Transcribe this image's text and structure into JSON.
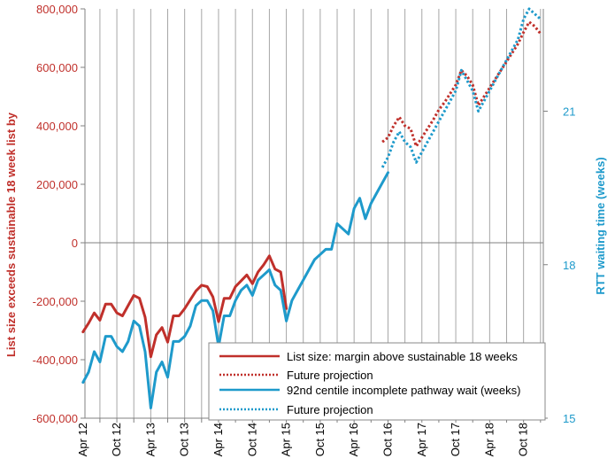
{
  "chart_data": {
    "type": "line",
    "title": "",
    "xlabel": "",
    "ylabel_left": "List size exceeds sustainable 18 week list by",
    "ylabel_right": "RTT waiting time (weeks)",
    "ylim_left": [
      -600000,
      800000
    ],
    "ylim_right": [
      15,
      23
    ],
    "left_ticks": [
      {
        "value": 800000,
        "label": "800,000"
      },
      {
        "value": 600000,
        "label": "600,000"
      },
      {
        "value": 400000,
        "label": "400,000"
      },
      {
        "value": 200000,
        "label": "200,000"
      },
      {
        "value": 0,
        "label": "0"
      },
      {
        "value": -200000,
        "label": "-200,000"
      },
      {
        "value": -400000,
        "label": "-400,000"
      },
      {
        "value": -600000,
        "label": "-600,000"
      }
    ],
    "right_ticks": [
      {
        "value": 21,
        "label": "21"
      },
      {
        "value": 18,
        "label": "18"
      },
      {
        "value": 15,
        "label": "15"
      }
    ],
    "x_start": "Apr 12",
    "x_period_count": 81,
    "x_tick_labels": [
      {
        "month_index": 0,
        "label": "Apr 12"
      },
      {
        "month_index": 6,
        "label": "Oct 12"
      },
      {
        "month_index": 12,
        "label": "Apr 13"
      },
      {
        "month_index": 18,
        "label": "Oct 13"
      },
      {
        "month_index": 24,
        "label": "Apr 14"
      },
      {
        "month_index": 30,
        "label": "Oct 14"
      },
      {
        "month_index": 36,
        "label": "Apr 15"
      },
      {
        "month_index": 42,
        "label": "Oct 15"
      },
      {
        "month_index": 48,
        "label": "Apr 16"
      },
      {
        "month_index": 54,
        "label": "Oct 16"
      },
      {
        "month_index": 60,
        "label": "Apr 17"
      },
      {
        "month_index": 66,
        "label": "Oct 17"
      },
      {
        "month_index": 72,
        "label": "Apr 18"
      },
      {
        "month_index": 78,
        "label": "Oct 18"
      }
    ],
    "grid": "vertical",
    "legend_position": "bottom-right",
    "series": [
      {
        "name": "List size: margin above sustainable 18 weeks",
        "axis": "left",
        "color": "#C0302B",
        "style": "solid",
        "points": [
          [
            0,
            -305000
          ],
          [
            1,
            -275000
          ],
          [
            2,
            -240000
          ],
          [
            3,
            -265000
          ],
          [
            4,
            -210000
          ],
          [
            5,
            -210000
          ],
          [
            6,
            -240000
          ],
          [
            7,
            -250000
          ],
          [
            8,
            -215000
          ],
          [
            9,
            -180000
          ],
          [
            10,
            -190000
          ],
          [
            11,
            -255000
          ],
          [
            12,
            -390000
          ],
          [
            13,
            -315000
          ],
          [
            14,
            -290000
          ],
          [
            15,
            -340000
          ],
          [
            16,
            -250000
          ],
          [
            17,
            -250000
          ],
          [
            18,
            -225000
          ],
          [
            19,
            -195000
          ],
          [
            20,
            -165000
          ],
          [
            21,
            -145000
          ],
          [
            22,
            -150000
          ],
          [
            23,
            -185000
          ],
          [
            24,
            -270000
          ],
          [
            25,
            -190000
          ],
          [
            26,
            -190000
          ],
          [
            27,
            -150000
          ],
          [
            28,
            -130000
          ],
          [
            29,
            -110000
          ],
          [
            30,
            -140000
          ],
          [
            31,
            -100000
          ],
          [
            32,
            -75000
          ],
          [
            33,
            -45000
          ],
          [
            34,
            -90000
          ],
          [
            35,
            -100000
          ],
          [
            36,
            -225000
          ]
        ]
      },
      {
        "name": "Future projection",
        "axis": "left",
        "color": "#C0302B",
        "style": "dotted",
        "points": [
          [
            53,
            345000
          ],
          [
            54,
            360000
          ],
          [
            55,
            400000
          ],
          [
            56,
            430000
          ],
          [
            57,
            400000
          ],
          [
            58,
            390000
          ],
          [
            59,
            330000
          ],
          [
            60,
            360000
          ],
          [
            61,
            390000
          ],
          [
            62,
            420000
          ],
          [
            63,
            455000
          ],
          [
            64,
            480000
          ],
          [
            65,
            510000
          ],
          [
            66,
            540000
          ],
          [
            67,
            590000
          ],
          [
            68,
            570000
          ],
          [
            69,
            540000
          ],
          [
            70,
            470000
          ],
          [
            71,
            500000
          ],
          [
            72,
            530000
          ],
          [
            73,
            560000
          ],
          [
            74,
            590000
          ],
          [
            75,
            620000
          ],
          [
            76,
            650000
          ],
          [
            77,
            680000
          ],
          [
            78,
            720000
          ],
          [
            79,
            755000
          ],
          [
            80,
            740000
          ],
          [
            81,
            715000
          ]
        ]
      },
      {
        "name": "92nd centile incomplete pathway wait (weeks)",
        "axis": "right",
        "color": "#1E9ACB",
        "style": "solid",
        "points": [
          [
            0,
            15.7
          ],
          [
            1,
            15.9
          ],
          [
            2,
            16.3
          ],
          [
            3,
            16.1
          ],
          [
            4,
            16.6
          ],
          [
            5,
            16.6
          ],
          [
            6,
            16.4
          ],
          [
            7,
            16.3
          ],
          [
            8,
            16.5
          ],
          [
            9,
            16.9
          ],
          [
            10,
            16.8
          ],
          [
            11,
            16.3
          ],
          [
            12,
            15.2
          ],
          [
            13,
            15.9
          ],
          [
            14,
            16.1
          ],
          [
            15,
            15.8
          ],
          [
            16,
            16.5
          ],
          [
            17,
            16.5
          ],
          [
            18,
            16.6
          ],
          [
            19,
            16.8
          ],
          [
            20,
            17.2
          ],
          [
            21,
            17.3
          ],
          [
            22,
            17.3
          ],
          [
            23,
            17.1
          ],
          [
            24,
            16.4
          ],
          [
            25,
            17.0
          ],
          [
            26,
            17.0
          ],
          [
            27,
            17.3
          ],
          [
            28,
            17.5
          ],
          [
            29,
            17.6
          ],
          [
            30,
            17.4
          ],
          [
            31,
            17.7
          ],
          [
            32,
            17.8
          ],
          [
            33,
            17.9
          ],
          [
            34,
            17.6
          ],
          [
            35,
            17.5
          ],
          [
            36,
            16.9
          ],
          [
            37,
            17.3
          ],
          [
            38,
            17.5
          ],
          [
            39,
            17.7
          ],
          [
            40,
            17.9
          ],
          [
            41,
            18.1
          ],
          [
            42,
            18.2
          ],
          [
            43,
            18.3
          ],
          [
            44,
            18.3
          ],
          [
            45,
            18.8
          ],
          [
            46,
            18.7
          ],
          [
            47,
            18.6
          ],
          [
            48,
            19.1
          ],
          [
            49,
            19.3
          ],
          [
            50,
            18.9
          ],
          [
            51,
            19.2
          ],
          [
            52,
            19.4
          ],
          [
            53,
            19.6
          ],
          [
            54,
            19.8
          ]
        ]
      },
      {
        "name": "Future projection",
        "axis": "right",
        "color": "#1E9ACB",
        "style": "dotted",
        "points": [
          [
            53,
            19.9
          ],
          [
            54,
            20.1
          ],
          [
            55,
            20.4
          ],
          [
            56,
            20.6
          ],
          [
            57,
            20.4
          ],
          [
            58,
            20.3
          ],
          [
            59,
            20.0
          ],
          [
            60,
            20.2
          ],
          [
            61,
            20.4
          ],
          [
            62,
            20.6
          ],
          [
            63,
            20.8
          ],
          [
            64,
            21.0
          ],
          [
            65,
            21.2
          ],
          [
            66,
            21.4
          ],
          [
            67,
            21.8
          ],
          [
            68,
            21.6
          ],
          [
            69,
            21.4
          ],
          [
            70,
            21.0
          ],
          [
            71,
            21.2
          ],
          [
            72,
            21.4
          ],
          [
            73,
            21.6
          ],
          [
            74,
            21.8
          ],
          [
            75,
            22.0
          ],
          [
            76,
            22.2
          ],
          [
            77,
            22.4
          ],
          [
            78,
            22.8
          ],
          [
            79,
            23.0
          ],
          [
            80,
            22.9
          ],
          [
            81,
            22.8
          ]
        ]
      }
    ]
  }
}
